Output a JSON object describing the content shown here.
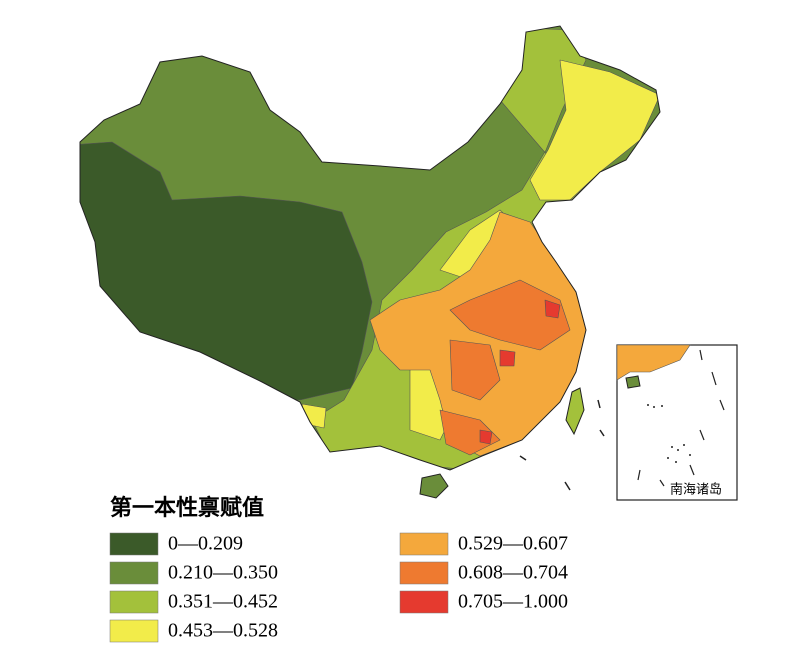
{
  "legend": {
    "title": "第一本性禀赋值",
    "items": [
      {
        "label": "0—0.209",
        "color": "#3b5a29"
      },
      {
        "label": "0.210—0.350",
        "color": "#6a8d3a"
      },
      {
        "label": "0.351—0.452",
        "color": "#a3c13b"
      },
      {
        "label": "0.453—0.528",
        "color": "#f2ec4a"
      },
      {
        "label": "0.529—0.607",
        "color": "#f4a83c"
      },
      {
        "label": "0.608—0.704",
        "color": "#ee7a30"
      },
      {
        "label": "0.705—1.000",
        "color": "#e53a2f"
      }
    ]
  },
  "inset": {
    "label": "南海诸岛"
  }
}
